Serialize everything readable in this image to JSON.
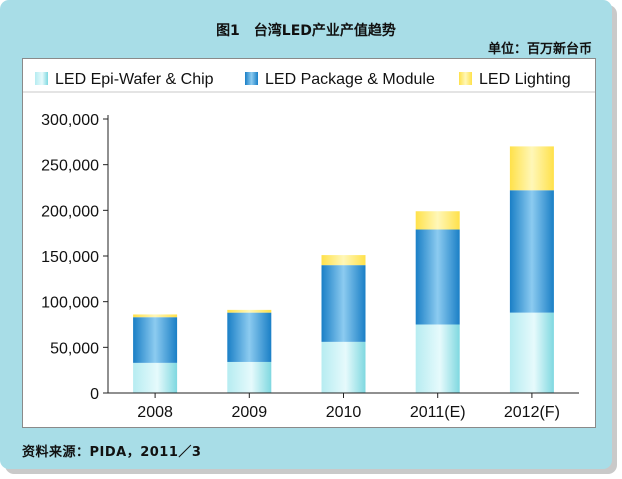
{
  "title": "图1　台湾LED产业产值趋势",
  "unit_label": "单位：百万新台币",
  "source": "资料来源：PIDA，2011／3",
  "chart_data": {
    "type": "bar",
    "stacked": true,
    "categories": [
      "2008",
      "2009",
      "2010",
      "2011(E)",
      "2012(F)"
    ],
    "series": [
      {
        "name": "LED Epi-Wafer & Chip",
        "color": "#7fd8e0",
        "values": [
          33000,
          34000,
          56000,
          75000,
          88000
        ]
      },
      {
        "name": "LED Package & Module",
        "color": "#1e86cf",
        "values": [
          50000,
          54000,
          84000,
          104000,
          134000
        ]
      },
      {
        "name": "LED Lighting",
        "color": "#ffe85a",
        "values": [
          3000,
          3000,
          11000,
          20000,
          48000
        ]
      }
    ],
    "ylim": [
      0,
      300000
    ],
    "yticks": [
      "0",
      "50,000",
      "100,000",
      "150,000",
      "200,000",
      "250,000",
      "300,000"
    ],
    "grid": false,
    "legend": "top"
  }
}
